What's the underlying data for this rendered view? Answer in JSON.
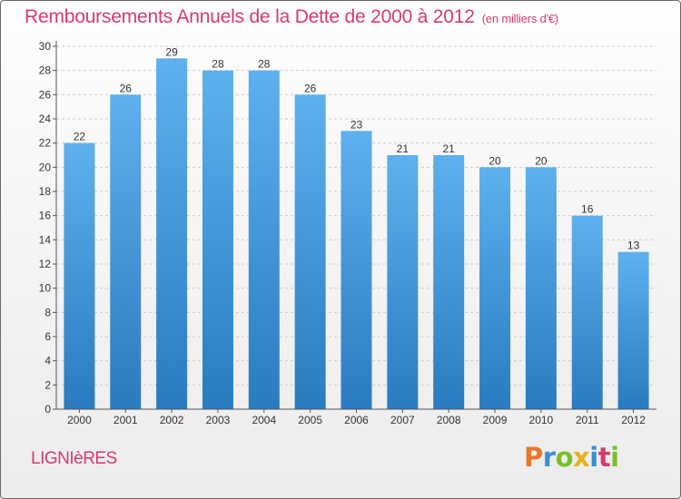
{
  "title": "Remboursements Annuels de la Dette de 2000 à 2012",
  "unit": "(en milliers d'€)",
  "place": "LIGNIèRES",
  "logo": {
    "letters": [
      "P",
      "r",
      "o",
      "x",
      "i",
      "t",
      "i"
    ],
    "colors": [
      "#e8762a",
      "#3a8fd6",
      "#7cbf2a",
      "#e8b020",
      "#3a8fd6",
      "#d63b6e",
      "#7cbf2a"
    ]
  },
  "colors": {
    "bar_top": "#5eb0ee",
    "bar_bottom": "#2a7bbf",
    "title": "#d63b6e"
  },
  "chart_data": {
    "type": "bar",
    "categories": [
      "2000",
      "2001",
      "2002",
      "2003",
      "2004",
      "2005",
      "2006",
      "2007",
      "2008",
      "2009",
      "2010",
      "2011",
      "2012"
    ],
    "values": [
      22,
      26,
      29,
      28,
      28,
      26,
      23,
      21,
      21,
      20,
      20,
      16,
      13
    ],
    "ylim": [
      0,
      30
    ],
    "yticks": [
      0,
      2,
      4,
      6,
      8,
      10,
      12,
      14,
      16,
      18,
      20,
      22,
      24,
      26,
      28,
      30
    ],
    "grid": true
  }
}
